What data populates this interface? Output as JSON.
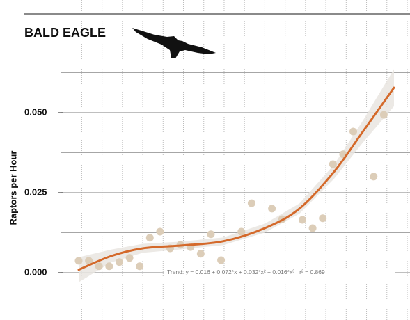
{
  "chart_data": {
    "type": "scatter",
    "title": "BALD EAGLE",
    "y_label": "Raptors per Hour",
    "annotation": "Trend: y = 0.016 + 0.072*x + 0.032*x² + 0.016*x³ , r² = 0.869",
    "x": [
      0,
      1,
      2,
      3,
      4,
      5,
      6,
      7,
      8,
      9,
      10,
      11,
      12,
      13,
      14,
      16,
      17,
      19,
      20,
      22,
      23,
      24,
      25,
      26,
      27,
      29,
      30
    ],
    "values": [
      0.0037,
      0.0037,
      0.002,
      0.002,
      0.0033,
      0.0046,
      0.002,
      0.0109,
      0.0128,
      0.0076,
      0.0087,
      0.008,
      0.0059,
      0.012,
      0.0039,
      0.0128,
      0.0217,
      0.02,
      0.0167,
      0.0165,
      0.0139,
      0.017,
      0.0339,
      0.037,
      0.0441,
      0.03,
      0.0493
    ],
    "color": "#dccdb8",
    "trend": {
      "x": [
        0,
        3.2,
        6.3,
        10.1,
        14.2,
        18.3,
        21.7,
        25.1,
        27.9,
        31
      ],
      "values": [
        0.0009,
        0.0052,
        0.0076,
        0.0085,
        0.0098,
        0.0139,
        0.02,
        0.0315,
        0.0439,
        0.0578
      ],
      "lower": [
        -0.003,
        0.0032,
        0.0062,
        0.0073,
        0.0086,
        0.0125,
        0.0184,
        0.0293,
        0.0405,
        0.052
      ],
      "upper": [
        0.0048,
        0.0072,
        0.009,
        0.0097,
        0.011,
        0.0153,
        0.0216,
        0.0337,
        0.0473,
        0.0636
      ],
      "color": "#d4692a",
      "band_color": "#e9e5e0"
    },
    "xlim": [
      0,
      31
    ],
    "ylim": [
      -0.0148,
      0.0852
    ],
    "yticks": [
      {
        "value": 0,
        "label": "0.000"
      },
      0.025,
      {
        "value": 0.05,
        "label": "0.050"
      }
    ],
    "ygrid": [
      0,
      0.0125,
      0.025,
      0.0375,
      0.05,
      0.0625
    ],
    "xgrid": [
      0.3,
      2.3,
      4.3,
      6.3,
      8.3,
      10.3,
      12.3,
      14.3,
      16.3,
      18.3,
      20.3,
      22.3,
      24.3,
      26.3,
      28.3,
      30.3,
      32.3
    ],
    "grid": true
  }
}
